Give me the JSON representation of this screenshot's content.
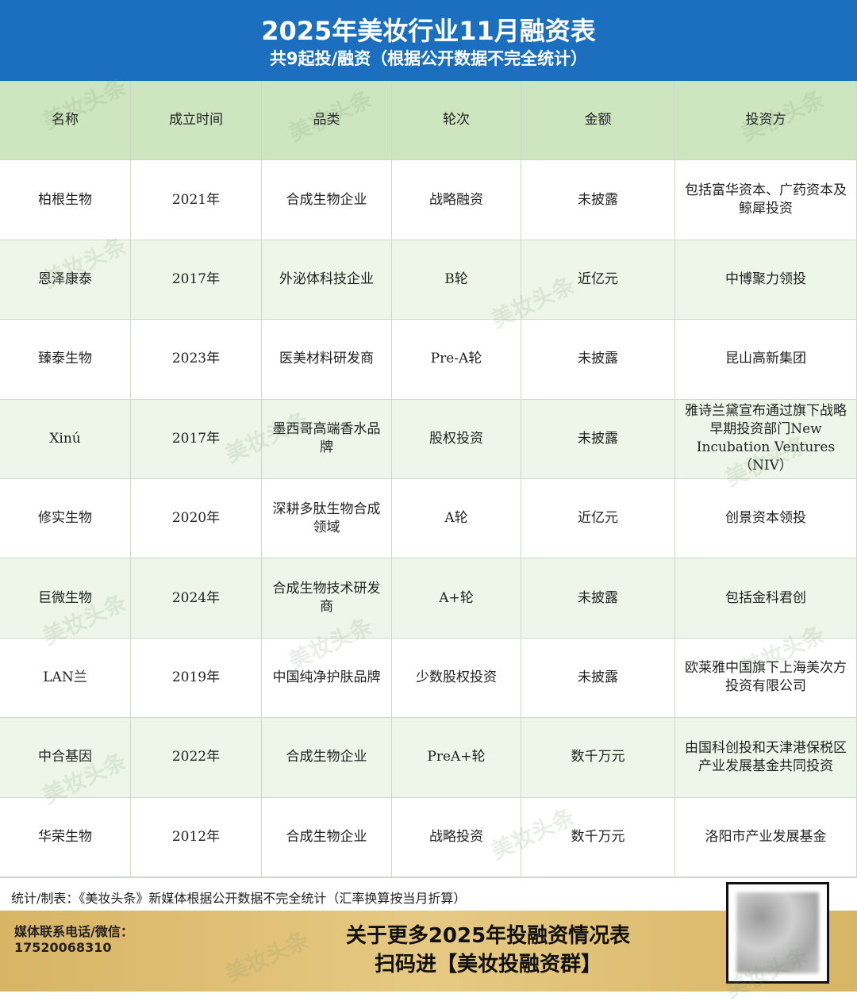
{
  "header": {
    "title": "2025年美妆行业11月融资表",
    "subtitle": "共9起投/融资（根据公开数据不完全统计）"
  },
  "table": {
    "columns": [
      "名称",
      "成立时间",
      "品类",
      "轮次",
      "金额",
      "投资方"
    ],
    "rows": [
      [
        "柏根生物",
        "2021年",
        "合成生物企业",
        "战略融资",
        "未披露",
        "包括富华资本、广药资本及鲸犀投资"
      ],
      [
        "恩泽康泰",
        "2017年",
        "外泌体科技企业",
        "B轮",
        "近亿元",
        "中博聚力领投"
      ],
      [
        "臻泰生物",
        "2023年",
        "医美材料研发商",
        "Pre-A轮",
        "未披露",
        "昆山高新集团"
      ],
      [
        "Xinú",
        "2017年",
        "墨西哥高端香水品牌",
        "股权投资",
        "未披露",
        "雅诗兰黛宣布通过旗下战略早期投资部门New Incubation Ventures（NIV）"
      ],
      [
        "修实生物",
        "2020年",
        "深耕多肽生物合成领域",
        "A轮",
        "近亿元",
        "创景资本领投"
      ],
      [
        "巨微生物",
        "2024年",
        "合成生物技术研发商",
        "A+轮",
        "未披露",
        "包括金科君创"
      ],
      [
        "LAN兰",
        "2019年",
        "中国纯净护肤品牌",
        "少数股权投资",
        "未披露",
        "欧莱雅中国旗下上海美次方投资有限公司"
      ],
      [
        "中合基因",
        "2022年",
        "合成生物企业",
        "PreA+轮",
        "数千万元",
        "由国科创投和天津港保税区产业发展基金共同投资"
      ],
      [
        "华荣生物",
        "2012年",
        "合成生物企业",
        "战略投资",
        "数千万元",
        "洛阳市产业发展基金"
      ]
    ]
  },
  "footer": {
    "note": "统计/制表：《美妆头条》新媒体根据公开数据不完全统计（汇率换算按当月折算）",
    "contact_label": "媒体联系电话/微信：",
    "contact_phone": "17520068310",
    "cta": [
      "关于更多2025年投融资情况表",
      "扫码进【美妆投融资群】"
    ]
  },
  "watermark": "美妆头条"
}
